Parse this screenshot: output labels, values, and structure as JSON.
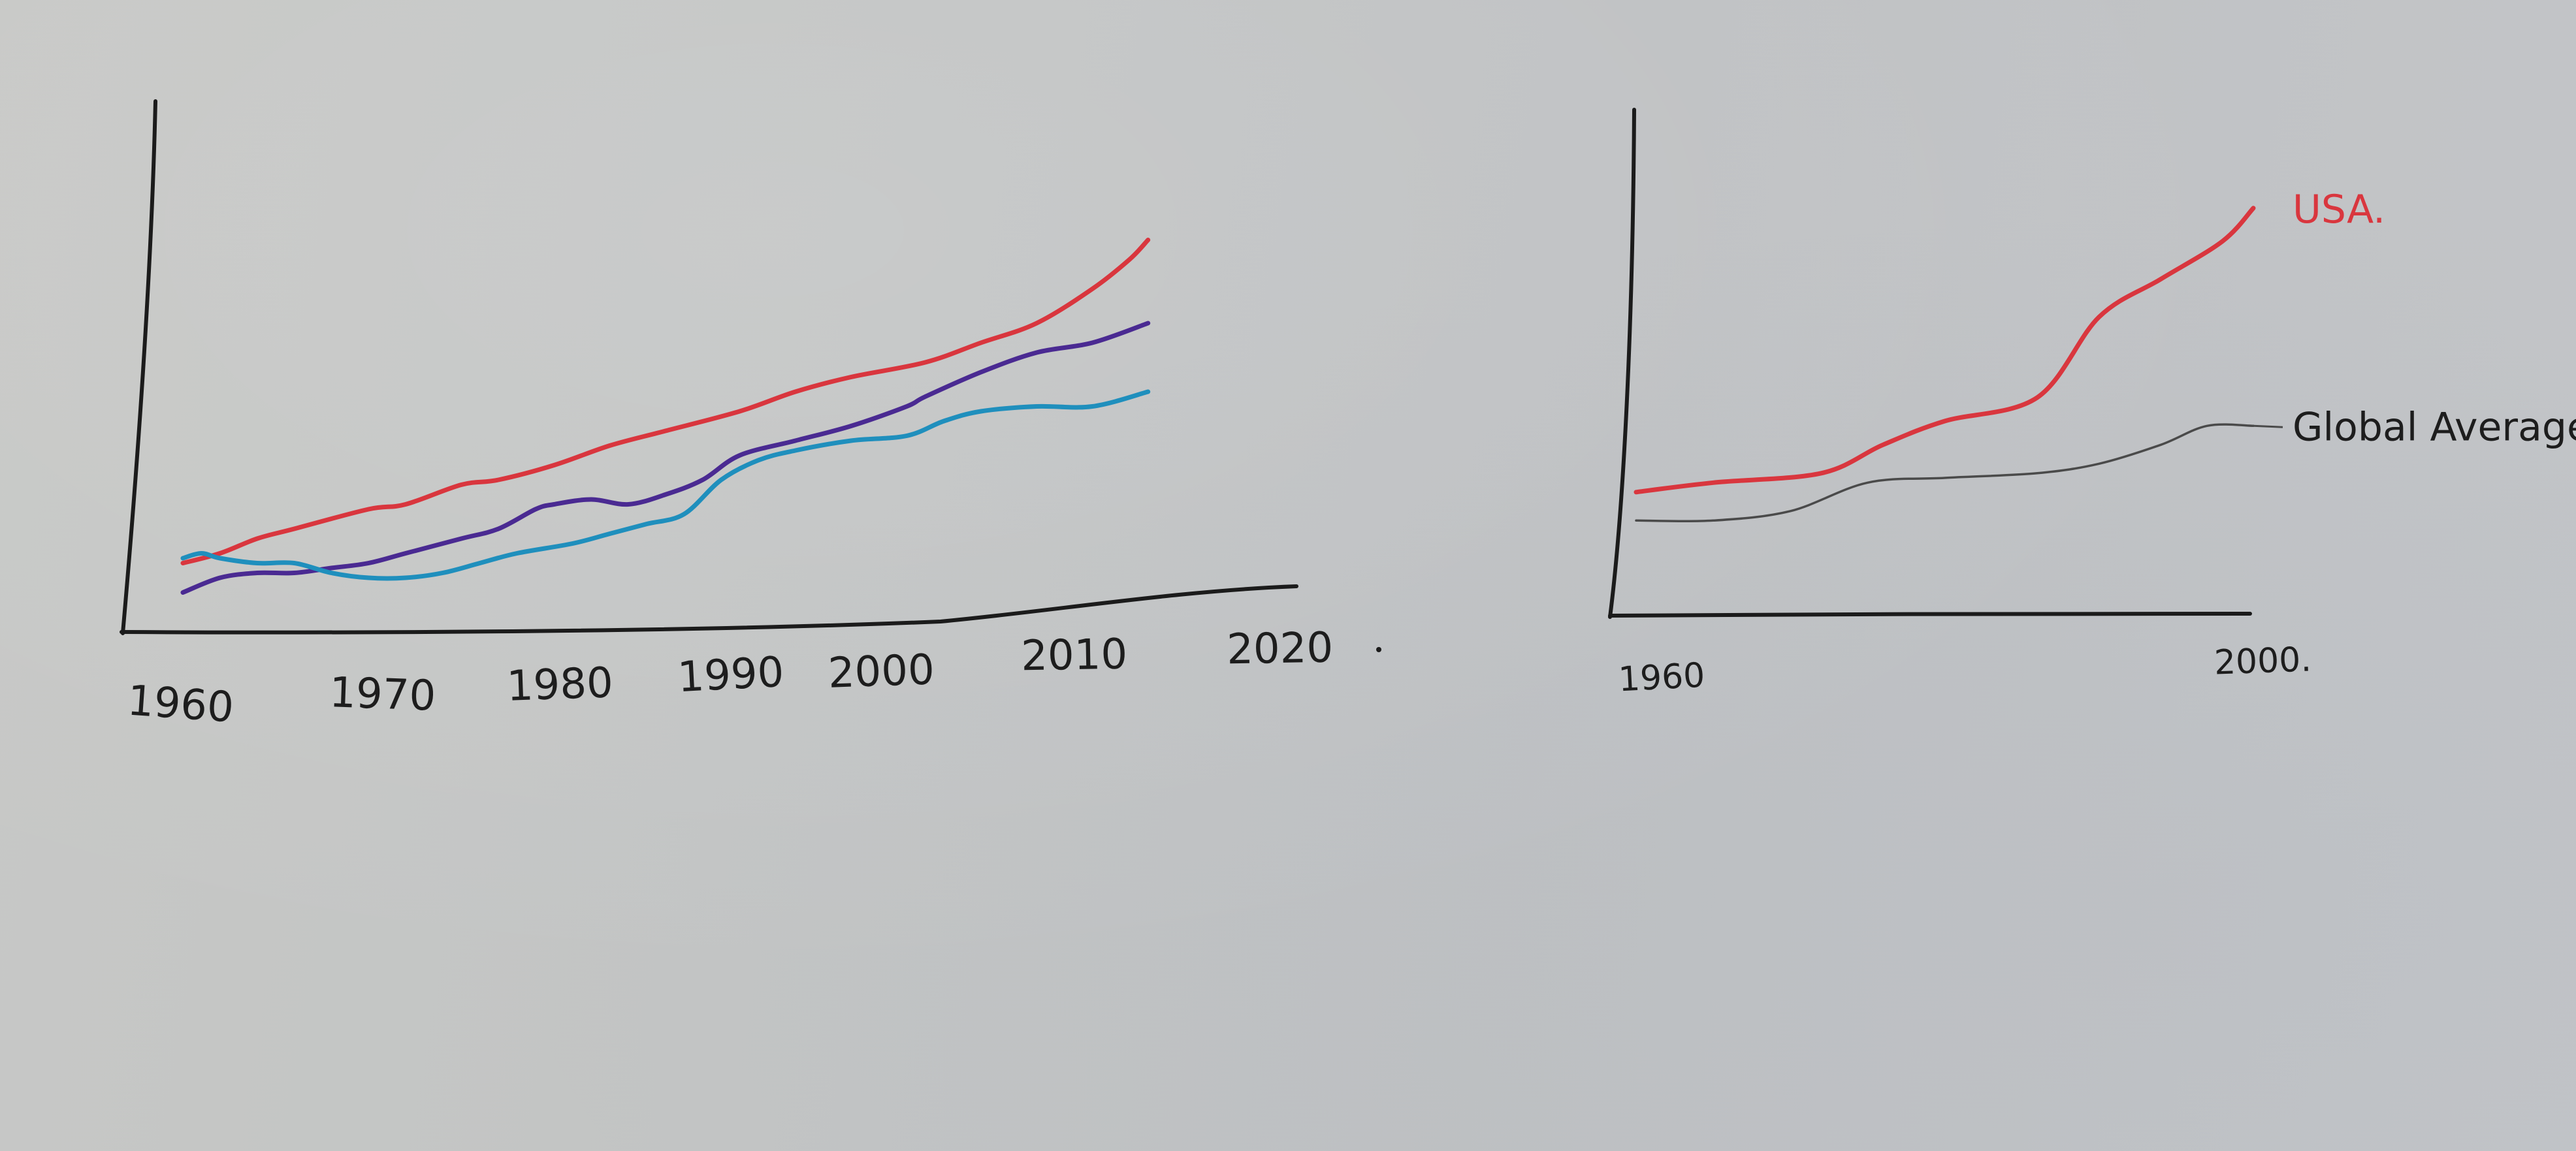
{
  "chart_data": [
    {
      "type": "line",
      "title": "",
      "xlabel": "",
      "ylabel": "",
      "xlim": [
        1960,
        2020
      ],
      "ylim": [
        0,
        100
      ],
      "grid": false,
      "x_ticks": [
        "1960",
        "1970",
        "1980",
        "1990",
        "2000",
        "2010",
        "2020"
      ],
      "series": [
        {
          "color": "#d9363e",
          "x": [
            1960,
            1962,
            1964,
            1966,
            1970,
            1972,
            1975,
            1977,
            1980,
            1983,
            1986,
            1990,
            1993,
            1996,
            2000,
            2003,
            2006,
            2009,
            2011,
            2012
          ],
          "values": [
            9,
            11,
            14,
            16,
            20,
            21,
            25,
            26,
            29,
            33,
            36,
            40,
            44,
            47,
            50,
            54,
            58,
            65,
            71,
            75
          ]
        },
        {
          "color": "#4a2a92",
          "x": [
            1960,
            1962,
            1964,
            1966,
            1968,
            1970,
            1972,
            1975,
            1977,
            1979,
            1980,
            1982,
            1984,
            1986,
            1988,
            1990,
            1993,
            1996,
            1999,
            2000,
            2003,
            2006,
            2009,
            2012
          ],
          "values": [
            3,
            6,
            7,
            7,
            8,
            9,
            11,
            14,
            16,
            20,
            21,
            22,
            21,
            23,
            26,
            31,
            34,
            37,
            41,
            43,
            48,
            52,
            54,
            58
          ]
        },
        {
          "color": "#1f8fbd",
          "x": [
            1960,
            1961,
            1962,
            1964,
            1966,
            1968,
            1970,
            1972,
            1974,
            1976,
            1978,
            1981,
            1983,
            1985,
            1987,
            1989,
            1991,
            1993,
            1996,
            1999,
            2001,
            2003,
            2006,
            2009,
            2012
          ],
          "values": [
            10,
            11,
            10,
            9,
            9,
            7,
            6,
            6,
            7,
            9,
            11,
            13,
            15,
            17,
            19,
            26,
            30,
            32,
            34,
            35,
            38,
            40,
            41,
            41,
            44
          ]
        }
      ]
    },
    {
      "type": "line",
      "title": "",
      "xlabel": "",
      "ylabel": "",
      "xlim": [
        1960,
        2000
      ],
      "ylim": [
        0,
        100
      ],
      "grid": false,
      "x_ticks": [
        "1960",
        "2000."
      ],
      "series": [
        {
          "name": "USA.",
          "color": "#d9363e",
          "x": [
            1960,
            1965,
            1972,
            1976,
            1980,
            1986,
            1990,
            1994,
            1998,
            2000
          ],
          "values": [
            25,
            27,
            29,
            35,
            40,
            45,
            62,
            70,
            78,
            85
          ]
        },
        {
          "name": "Global Average",
          "color": "#4a4a4a",
          "x": [
            1960,
            1965,
            1970,
            1975,
            1980,
            1986,
            1990,
            1994,
            1997,
            2000
          ],
          "values": [
            19,
            19,
            21,
            27,
            28,
            29,
            31,
            35,
            39,
            39
          ]
        }
      ]
    }
  ]
}
